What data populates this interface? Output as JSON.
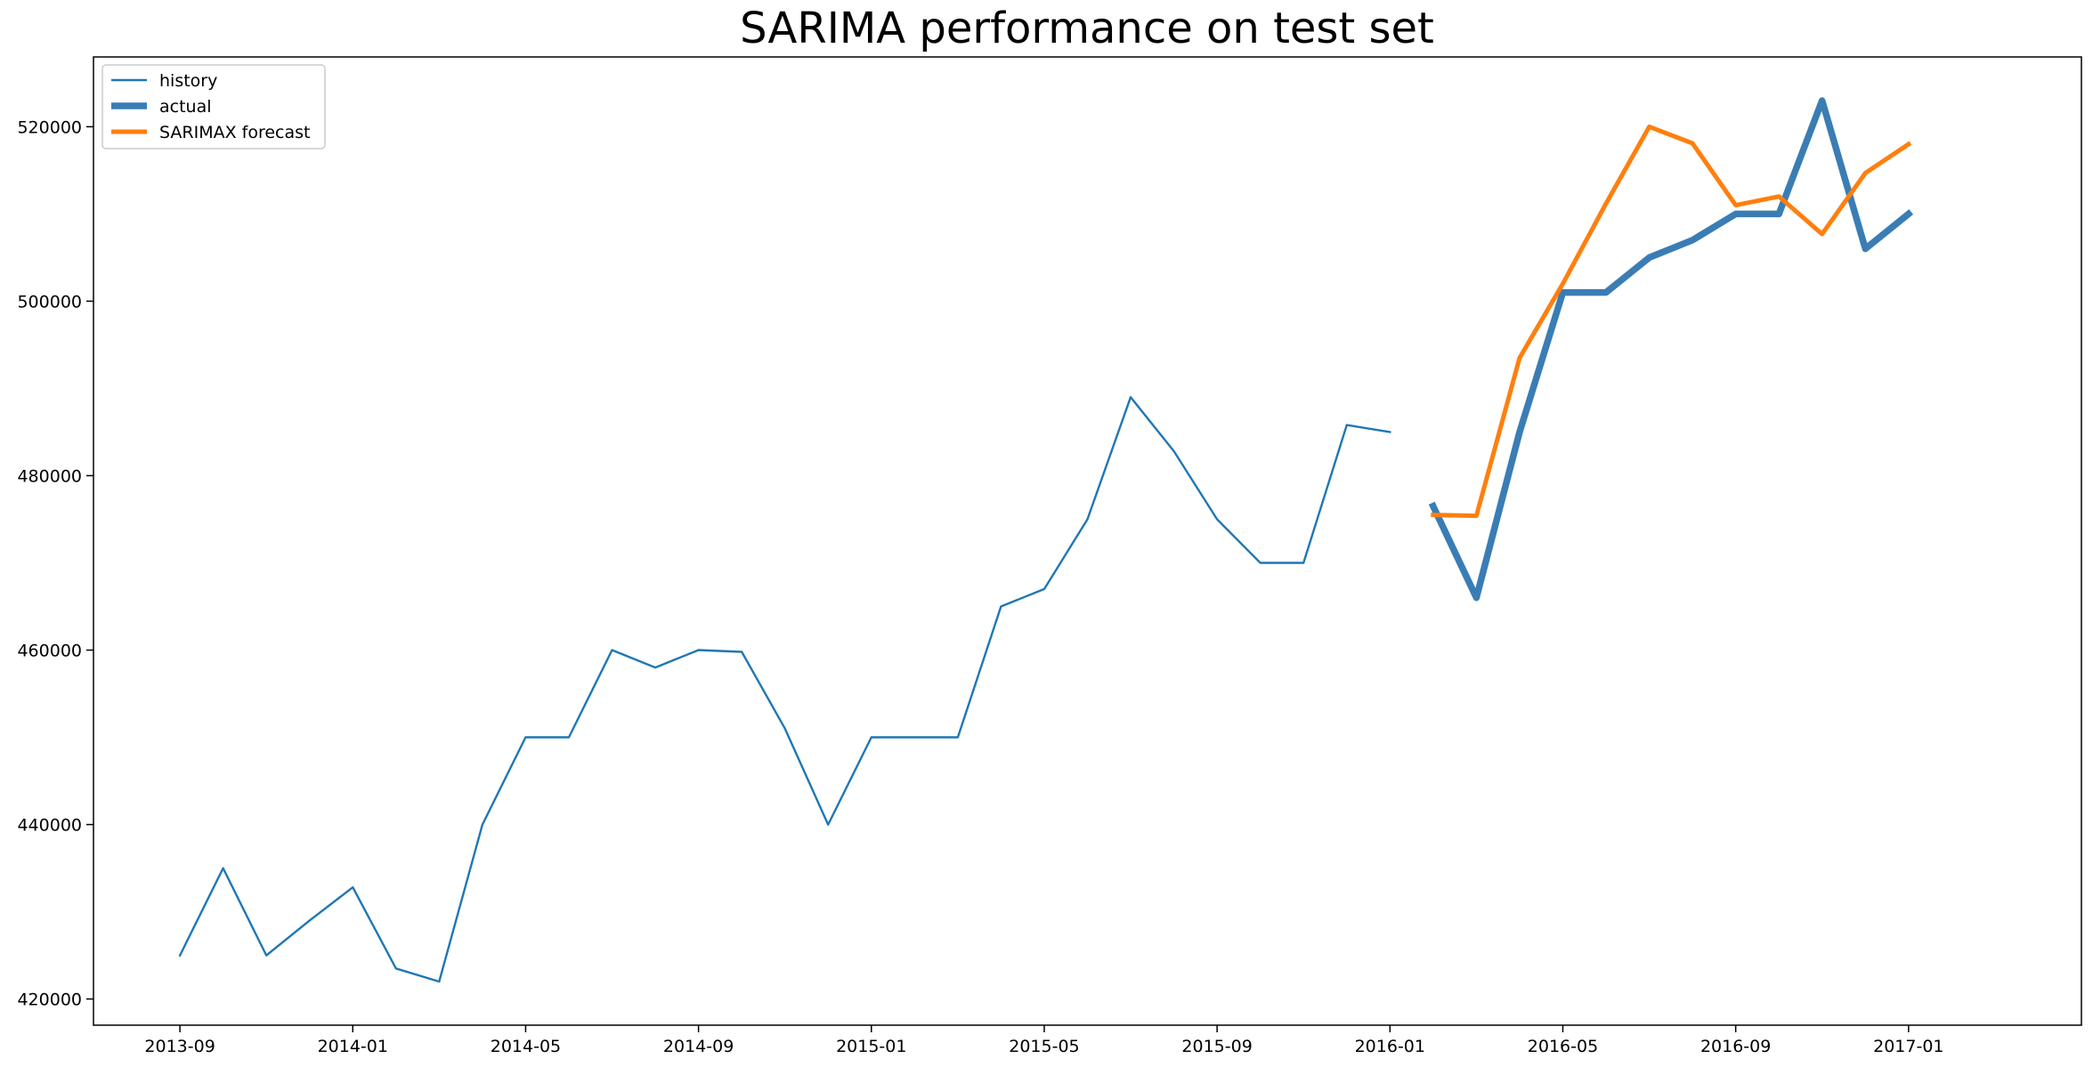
{
  "chart_data": {
    "type": "line",
    "title": "SARIMA performance on test set",
    "xlabel": "",
    "ylabel": "",
    "x_ticks": [
      "2013-09",
      "2014-01",
      "2014-05",
      "2014-09",
      "2015-01",
      "2015-05",
      "2015-09",
      "2016-01",
      "2016-05",
      "2016-09",
      "2017-01"
    ],
    "y_ticks": [
      420000,
      440000,
      460000,
      480000,
      500000,
      520000
    ],
    "y_tick_labels": [
      "420000",
      "440000",
      "460000",
      "480000",
      "500000",
      "520000"
    ],
    "xlim": [
      "2013-07-01",
      "2017-05-01"
    ],
    "ylim": [
      417000,
      528000
    ],
    "grid": false,
    "legend_position": "upper left",
    "series": [
      {
        "name": "history",
        "color": "#1f77b4",
        "x": [
          "2013-09",
          "2013-10",
          "2013-11",
          "2013-12",
          "2014-01",
          "2014-02",
          "2014-03",
          "2014-04",
          "2014-05",
          "2014-06",
          "2014-07",
          "2014-08",
          "2014-09",
          "2014-10",
          "2014-11",
          "2014-12",
          "2015-01",
          "2015-02",
          "2015-03",
          "2015-04",
          "2015-05",
          "2015-06",
          "2015-07",
          "2015-08",
          "2015-09",
          "2015-10",
          "2015-11",
          "2015-12",
          "2016-01"
        ],
        "values": [
          425000,
          435000,
          425000,
          429000,
          432800,
          423500,
          422000,
          440000,
          450000,
          450000,
          460000,
          458000,
          460000,
          459800,
          451000,
          440000,
          450000,
          450000,
          450000,
          465000,
          467000,
          475000,
          489000,
          482800,
          475000,
          470000,
          470000,
          485800,
          485000
        ]
      },
      {
        "name": "actual",
        "color": "#3a7db5",
        "x": [
          "2016-02",
          "2016-03",
          "2016-04",
          "2016-05",
          "2016-06",
          "2016-07",
          "2016-08",
          "2016-09",
          "2016-10",
          "2016-11",
          "2016-12",
          "2017-01"
        ],
        "values": [
          476500,
          466000,
          485000,
          501000,
          501000,
          505000,
          507000,
          510000,
          510000,
          523000,
          506000,
          510000
        ]
      },
      {
        "name": "SARIMAX forecast",
        "color": "#ff7f0e",
        "x": [
          "2016-02",
          "2016-03",
          "2016-04",
          "2016-05",
          "2016-06",
          "2016-07",
          "2016-08",
          "2016-09",
          "2016-10",
          "2016-11",
          "2016-12",
          "2017-01"
        ],
        "values": [
          475500,
          475400,
          493500,
          502000,
          511200,
          520000,
          518100,
          511000,
          512000,
          507700,
          514700,
          518000
        ]
      }
    ]
  }
}
